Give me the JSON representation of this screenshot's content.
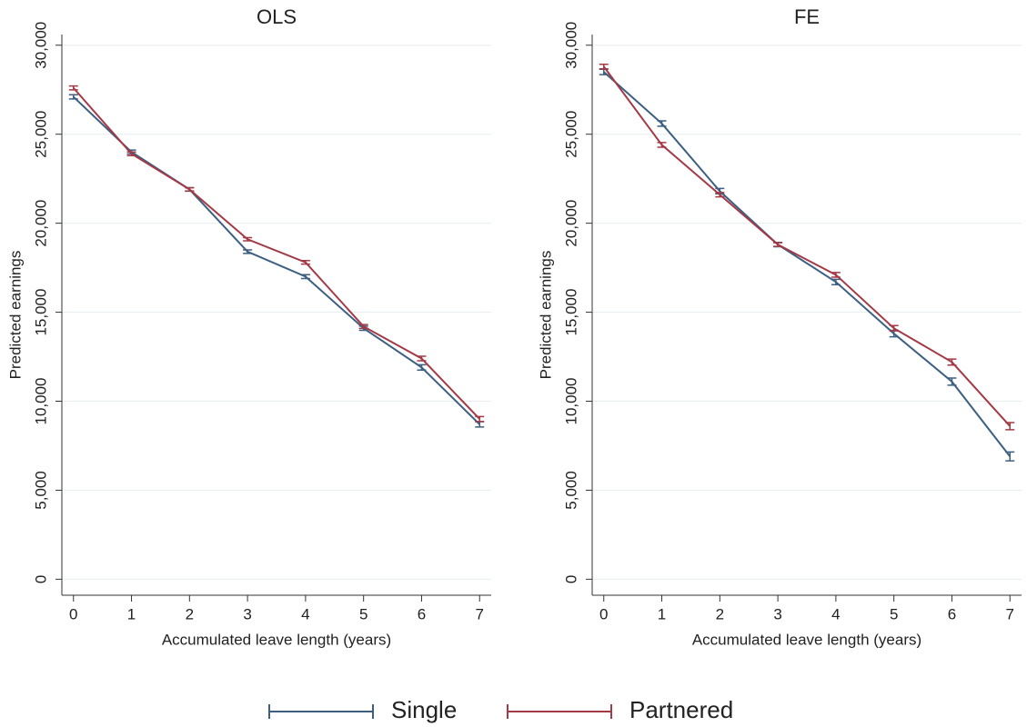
{
  "chart_data": [
    {
      "type": "line",
      "title": "OLS",
      "x_label": "Accumulated leave length (years)",
      "y_label": "Predicted earnings",
      "x": [
        0,
        1,
        2,
        3,
        4,
        5,
        6,
        7
      ],
      "series": [
        {
          "name": "Single",
          "color": "#3c5f82",
          "values": [
            27100,
            24000,
            21900,
            18400,
            17000,
            14100,
            11900,
            8700
          ],
          "errors": [
            120,
            110,
            100,
            100,
            110,
            120,
            150,
            150
          ]
        },
        {
          "name": "Partnered",
          "color": "#a33a46",
          "values": [
            27600,
            23900,
            21900,
            19100,
            17800,
            14200,
            12400,
            9000
          ],
          "errors": [
            110,
            100,
            90,
            90,
            100,
            110,
            130,
            140
          ]
        }
      ],
      "xlim": [
        -0.2,
        7.2
      ],
      "ylim": [
        -900,
        30600
      ],
      "xticks": [
        0,
        1,
        2,
        3,
        4,
        5,
        6,
        7
      ],
      "yticks": [
        0,
        {
          "value": 5000,
          "label": "5,000"
        },
        {
          "value": 10000,
          "label": "10,000"
        },
        {
          "value": 15000,
          "label": "15,000"
        },
        {
          "value": 20000,
          "label": "20,000"
        },
        {
          "value": 25000,
          "label": "25,000"
        },
        {
          "value": 30000,
          "label": "30,000"
        }
      ],
      "grid": true,
      "legend": "bottom"
    },
    {
      "type": "line",
      "title": "FE",
      "x_label": "Accumulated leave length (years)",
      "y_label": "Predicted earnings",
      "x": [
        0,
        1,
        2,
        3,
        4,
        5,
        6,
        7
      ],
      "series": [
        {
          "color": "#3c5f82",
          "values": [
            28500,
            25600,
            21800,
            18800,
            16700,
            13800,
            11100,
            6900
          ],
          "errors": [
            150,
            150,
            150,
            120,
            150,
            180,
            200,
            250
          ]
        },
        {
          "color": "#a33a46",
          "values": [
            28800,
            24400,
            21600,
            18800,
            17100,
            14100,
            12200,
            8600
          ],
          "errors": [
            130,
            130,
            120,
            100,
            130,
            150,
            170,
            200
          ]
        }
      ],
      "xlim": [
        -0.2,
        7.2
      ],
      "ylim": [
        -900,
        30600
      ],
      "xticks": [
        0,
        1,
        2,
        3,
        4,
        5,
        6,
        7
      ],
      "yticks": [
        0,
        {
          "value": 5000,
          "label": "5,000"
        },
        {
          "value": 10000,
          "label": "10,000"
        },
        {
          "value": 15000,
          "label": "15,000"
        },
        {
          "value": 20000,
          "label": "20,000"
        },
        {
          "value": 25000,
          "label": "25,000"
        },
        {
          "value": 30000,
          "label": "30,000"
        }
      ],
      "grid": true
    }
  ]
}
